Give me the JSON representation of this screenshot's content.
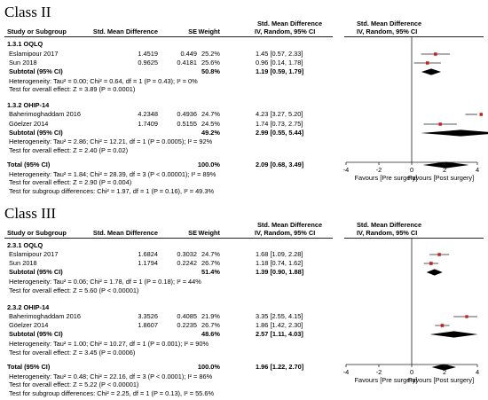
{
  "panels": [
    {
      "title": "Class II",
      "header": {
        "study": "Study or Subgroup",
        "smd": "Std. Mean Difference",
        "se": "SE",
        "weight": "Weight",
        "ci_col_top": "Std. Mean Difference",
        "ci_col_bottom": "IV, Random, 95% CI",
        "plot_col_top": "Std. Mean Difference",
        "plot_col_bottom": "IV, Random, 95% CI"
      },
      "groups": [
        {
          "name": "1.3.1 OQLQ",
          "studies": [
            {
              "study": "Eslamipour 2017",
              "smd": "1.4519",
              "se": "0.449",
              "weight": "25.2%",
              "ci": "1.45 [0.57, 2.33]"
            },
            {
              "study": "Sun 2018",
              "smd": "0.9625",
              "se": "0.4181",
              "weight": "25.6%",
              "ci": "0.96 [0.14, 1.78]"
            }
          ],
          "subtotal": {
            "label": "Subtotal (95% CI)",
            "weight": "50.8%",
            "ci": "1.19 [0.59, 1.79]"
          },
          "heterogeneity": "Heterogeneity: Tau² = 0.00; Chi² = 0.64, df = 1 (P = 0.43); I² = 0%",
          "overall": "Test for overall effect: Z = 3.89 (P = 0.0001)"
        },
        {
          "name": "1.3.2 OHIP-14",
          "studies": [
            {
              "study": "Baherimoghaddam 2016",
              "smd": "4.2348",
              "se": "0.4936",
              "weight": "24.7%",
              "ci": "4.23 [3.27, 5.20]"
            },
            {
              "study": "Göelzer 2014",
              "smd": "1.7409",
              "se": "0.5155",
              "weight": "24.5%",
              "ci": "1.74 [0.73, 2.75]"
            }
          ],
          "subtotal": {
            "label": "Subtotal (95% CI)",
            "weight": "49.2%",
            "ci": "2.99 [0.55, 5.44]"
          },
          "heterogeneity": "Heterogeneity: Tau² = 2.86; Chi² = 12.21, df = 1 (P = 0.0005); I² = 92%",
          "overall": "Test for overall effect: Z = 2.40 (P = 0.02)"
        }
      ],
      "total": {
        "label": "Total (95% CI)",
        "weight": "100.0%",
        "ci": "2.09 [0.68, 3.49]",
        "heterogeneity": "Heterogeneity: Tau² = 1.84; Chi² = 28.39, df = 3 (P < 0.00001); I² = 89%",
        "overall": "Test for overall effect: Z = 2.90 (P = 0.004)",
        "subgroup": "Test for subgroup differences: Chi² = 1.97, df = 1 (P = 0.16), I² = 49.3%"
      },
      "axis": {
        "ticks": [
          "-4",
          "-2",
          "0",
          "2",
          "4"
        ],
        "left_label": "Favours [Pre surgery]",
        "right_label": "Favours [Post surgery]"
      }
    },
    {
      "title": "Class III",
      "header": {
        "study": "Study or Subgroup",
        "smd": "Std. Mean Difference",
        "se": "SE",
        "weight": "Weight",
        "ci_col_top": "Std. Mean Difference",
        "ci_col_bottom": "IV, Random, 95% CI",
        "plot_col_top": "Std. Mean Difference",
        "plot_col_bottom": "IV, Random, 95% CI"
      },
      "groups": [
        {
          "name": "2.3.1 OQLQ",
          "studies": [
            {
              "study": "Eslamipour 2017",
              "smd": "1.6824",
              "se": "0.3032",
              "weight": "24.7%",
              "ci": "1.68 [1.09, 2.28]"
            },
            {
              "study": "Sun 2018",
              "smd": "1.1794",
              "se": "0.2242",
              "weight": "26.7%",
              "ci": "1.18 [0.74, 1.62]"
            }
          ],
          "subtotal": {
            "label": "Subtotal (95% CI)",
            "weight": "51.4%",
            "ci": "1.39 [0.90, 1.88]"
          },
          "heterogeneity": "Heterogeneity: Tau² = 0.06; Chi² = 1.78, df = 1 (P = 0.18); I² = 44%",
          "overall": "Test for overall effect: Z = 5.60 (P < 0.00001)"
        },
        {
          "name": "2.3.2 OHIP-14",
          "studies": [
            {
              "study": "Baherimoghaddam 2016",
              "smd": "3.3526",
              "se": "0.4085",
              "weight": "21.9%",
              "ci": "3.35 [2.55, 4.15]"
            },
            {
              "study": "Göelzer 2014",
              "smd": "1.8607",
              "se": "0.2235",
              "weight": "26.7%",
              "ci": "1.86 [1.42, 2.30]"
            }
          ],
          "subtotal": {
            "label": "Subtotal (95% CI)",
            "weight": "48.6%",
            "ci": "2.57 [1.11, 4.03]"
          },
          "heterogeneity": "Heterogeneity: Tau² = 1.00; Chi² = 10.27, df = 1 (P = 0.001); I² = 90%",
          "overall": "Test for overall effect: Z = 3.45 (P = 0.0006)"
        }
      ],
      "total": {
        "label": "Total (95% CI)",
        "weight": "100.0%",
        "ci": "1.96 [1.22, 2.70]",
        "heterogeneity": "Heterogeneity: Tau² = 0.48; Chi² = 22.16, df = 3 (P < 0.0001); I² = 86%",
        "overall": "Test for overall effect: Z = 5.22 (P < 0.00001)",
        "subgroup": "Test for subgroup differences: Chi² = 2.25, df = 1 (P = 0.13), I² = 55.6%"
      },
      "axis": {
        "ticks": [
          "-4",
          "-2",
          "0",
          "2",
          "4"
        ],
        "left_label": "Favours [Pre surgery]",
        "right_label": "Favours [Post surgery]"
      }
    }
  ],
  "colors": {
    "study_marker": "#cc1b1b",
    "diamond": "#000000",
    "line": "#222222"
  },
  "chart_data": [
    {
      "type": "forest",
      "title": "Class II",
      "xlim": [
        -4,
        4
      ],
      "studies": [
        {
          "name": "Eslamipour 2017",
          "group": "1.3.1 OQLQ",
          "smd": 1.45,
          "ci": [
            0.57,
            2.33
          ],
          "weight": 25.2
        },
        {
          "name": "Sun 2018",
          "group": "1.3.1 OQLQ",
          "smd": 0.96,
          "ci": [
            0.14,
            1.78
          ],
          "weight": 25.6
        },
        {
          "name": "Baherimoghaddam 2016",
          "group": "1.3.2 OHIP-14",
          "smd": 4.23,
          "ci": [
            3.27,
            5.2
          ],
          "weight": 24.7
        },
        {
          "name": "Göelzer 2014",
          "group": "1.3.2 OHIP-14",
          "smd": 1.74,
          "ci": [
            0.73,
            2.75
          ],
          "weight": 24.5
        }
      ],
      "subtotals": [
        {
          "group": "1.3.1 OQLQ",
          "smd": 1.19,
          "ci": [
            0.59,
            1.79
          ],
          "weight": 50.8
        },
        {
          "group": "1.3.2 OHIP-14",
          "smd": 2.99,
          "ci": [
            0.55,
            5.44
          ],
          "weight": 49.2
        }
      ],
      "total": {
        "smd": 2.09,
        "ci": [
          0.68,
          3.49
        ],
        "weight": 100.0
      }
    },
    {
      "type": "forest",
      "title": "Class III",
      "xlim": [
        -4,
        4
      ],
      "studies": [
        {
          "name": "Eslamipour 2017",
          "group": "2.3.1 OQLQ",
          "smd": 1.68,
          "ci": [
            1.09,
            2.28
          ],
          "weight": 24.7
        },
        {
          "name": "Sun 2018",
          "group": "2.3.1 OQLQ",
          "smd": 1.18,
          "ci": [
            0.74,
            1.62
          ],
          "weight": 26.7
        },
        {
          "name": "Baherimoghaddam 2016",
          "group": "2.3.2 OHIP-14",
          "smd": 3.35,
          "ci": [
            2.55,
            4.15
          ],
          "weight": 21.9
        },
        {
          "name": "Göelzer 2014",
          "group": "2.3.2 OHIP-14",
          "smd": 1.86,
          "ci": [
            1.42,
            2.3
          ],
          "weight": 26.7
        }
      ],
      "subtotals": [
        {
          "group": "2.3.1 OQLQ",
          "smd": 1.39,
          "ci": [
            0.9,
            1.88
          ],
          "weight": 51.4
        },
        {
          "group": "2.3.2 OHIP-14",
          "smd": 2.57,
          "ci": [
            1.11,
            4.03
          ],
          "weight": 48.6
        }
      ],
      "total": {
        "smd": 1.96,
        "ci": [
          1.22,
          2.7
        ],
        "weight": 100.0
      }
    }
  ]
}
